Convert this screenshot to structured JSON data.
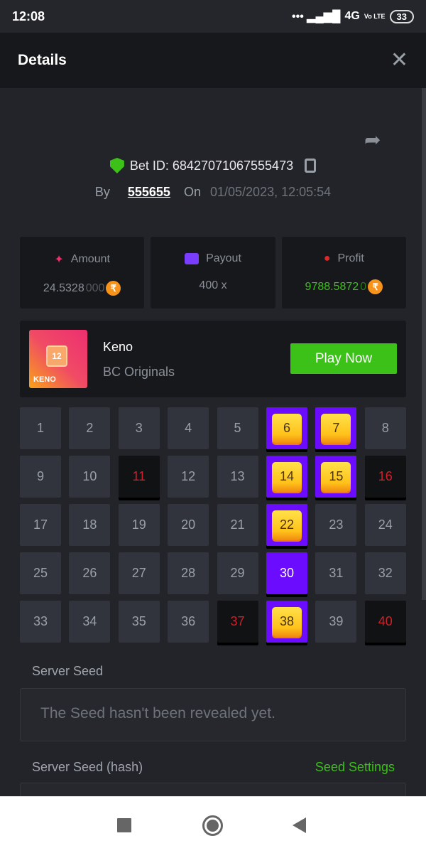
{
  "status_bar": {
    "time": "12:08",
    "network": "4G",
    "volte": "Vo LTE",
    "battery": "33"
  },
  "header": {
    "title": "Details",
    "close_icon": "close-icon"
  },
  "bet": {
    "id_label": "Bet ID: 68427071067555473",
    "by_label": "By",
    "user": "555655",
    "on_label": "On",
    "date": "01/05/2023, 12:05:54"
  },
  "stats": {
    "amount": {
      "label": "Amount",
      "value_main": "24.5328",
      "value_trail": "000",
      "currency": "₹"
    },
    "payout": {
      "label": "Payout",
      "value": "400 x"
    },
    "profit": {
      "label": "Profit",
      "value_main": "9788.5872",
      "value_trail": "0",
      "currency": "₹"
    }
  },
  "game": {
    "name": "Keno",
    "provider": "BC Originals",
    "play_label": "Play Now",
    "thumb_number": "12",
    "thumb_text": "KENO"
  },
  "colors": {
    "accent_green": "#3bc117",
    "selected_purple": "#6b0cff",
    "miss_red": "#d0202a"
  },
  "board": {
    "cells": [
      {
        "n": "1",
        "s": "n"
      },
      {
        "n": "2",
        "s": "n"
      },
      {
        "n": "3",
        "s": "n"
      },
      {
        "n": "4",
        "s": "n"
      },
      {
        "n": "5",
        "s": "n"
      },
      {
        "n": "6",
        "s": "hit"
      },
      {
        "n": "7",
        "s": "hit"
      },
      {
        "n": "8",
        "s": "n"
      },
      {
        "n": "9",
        "s": "n"
      },
      {
        "n": "10",
        "s": "n"
      },
      {
        "n": "11",
        "s": "miss"
      },
      {
        "n": "12",
        "s": "n"
      },
      {
        "n": "13",
        "s": "n"
      },
      {
        "n": "14",
        "s": "hit"
      },
      {
        "n": "15",
        "s": "hit"
      },
      {
        "n": "16",
        "s": "miss"
      },
      {
        "n": "17",
        "s": "n"
      },
      {
        "n": "18",
        "s": "n"
      },
      {
        "n": "19",
        "s": "n"
      },
      {
        "n": "20",
        "s": "n"
      },
      {
        "n": "21",
        "s": "n"
      },
      {
        "n": "22",
        "s": "hit"
      },
      {
        "n": "23",
        "s": "n"
      },
      {
        "n": "24",
        "s": "n"
      },
      {
        "n": "25",
        "s": "n"
      },
      {
        "n": "26",
        "s": "n"
      },
      {
        "n": "27",
        "s": "n"
      },
      {
        "n": "28",
        "s": "n"
      },
      {
        "n": "29",
        "s": "n"
      },
      {
        "n": "30",
        "s": "sel"
      },
      {
        "n": "31",
        "s": "n"
      },
      {
        "n": "32",
        "s": "n"
      },
      {
        "n": "33",
        "s": "n"
      },
      {
        "n": "34",
        "s": "n"
      },
      {
        "n": "35",
        "s": "n"
      },
      {
        "n": "36",
        "s": "n"
      },
      {
        "n": "37",
        "s": "miss"
      },
      {
        "n": "38",
        "s": "hit"
      },
      {
        "n": "39",
        "s": "n"
      },
      {
        "n": "40",
        "s": "miss"
      }
    ]
  },
  "seeds": {
    "server_seed_label": "Server Seed",
    "server_seed_placeholder": "The Seed hasn't been revealed yet.",
    "hash_label": "Server Seed (hash)",
    "seed_settings_label": "Seed Settings"
  }
}
